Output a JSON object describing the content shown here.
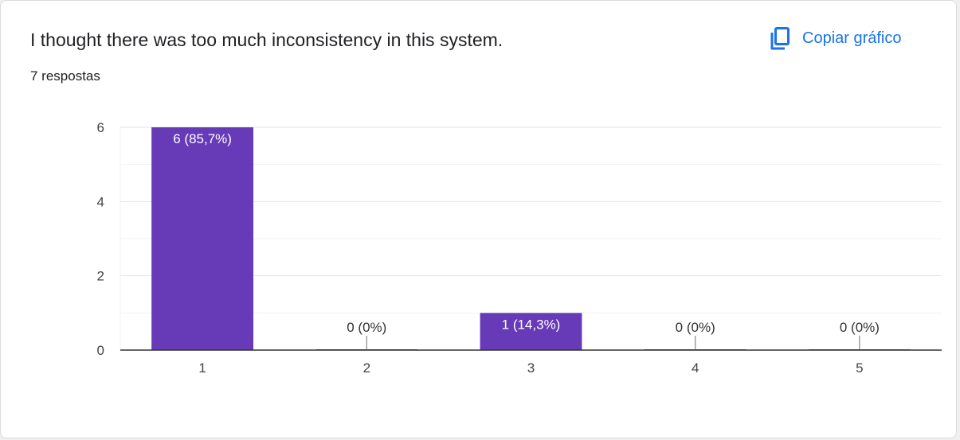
{
  "question": {
    "title": "I thought there was too much inconsistency in this system.",
    "responses": "7 respostas"
  },
  "actions": {
    "copy_label": "Copiar gráfico",
    "copy_icon": "copy-icon"
  },
  "colors": {
    "bar": "#673ab7",
    "accent": "#1a73e8"
  },
  "chart_data": {
    "type": "bar",
    "categories": [
      "1",
      "2",
      "3",
      "4",
      "5"
    ],
    "values": [
      6,
      0,
      1,
      0,
      0
    ],
    "data_labels": [
      "6 (85,7%)",
      "0 (0%)",
      "1 (14,3%)",
      "0 (0%)",
      "0 (0%)"
    ],
    "y_ticks": [
      "0",
      "2",
      "4",
      "6"
    ],
    "ylim": [
      0,
      6
    ],
    "grid": true,
    "legend": "none"
  }
}
